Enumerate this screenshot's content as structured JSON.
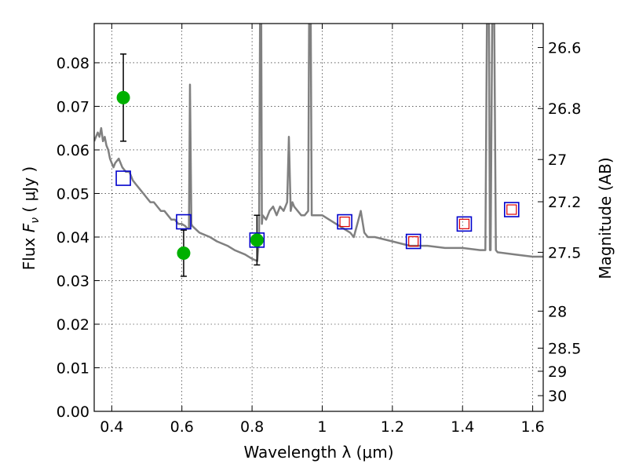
{
  "chart_data": {
    "type": "scatter",
    "title": "",
    "xlabel": "Wavelength  λ (μm)",
    "ylabel_left_prefix": "Flux  ",
    "ylabel_left_var": "F",
    "ylabel_left_sub": "ν",
    "ylabel_left_suffix": "  ( μJy )",
    "ylabel_right": "Magnitude (AB)",
    "xlim": [
      0.35,
      1.63
    ],
    "ylim": [
      0.0,
      0.089
    ],
    "xticks": [
      0.4,
      0.6,
      0.8,
      1.0,
      1.2,
      1.4,
      1.6
    ],
    "xtick_labels": [
      "0.4",
      "0.6",
      "0.8",
      "1",
      "1.2",
      "1.4",
      "1.6"
    ],
    "yticks": [
      0.0,
      0.01,
      0.02,
      0.03,
      0.04,
      0.05,
      0.06,
      0.07,
      0.08
    ],
    "ytick_labels": [
      "0.00",
      "0.01",
      "0.02",
      "0.03",
      "0.04",
      "0.05",
      "0.06",
      "0.07",
      "0.08"
    ],
    "right_ticks": [
      {
        "label": "26.6",
        "flux": 0.0835
      },
      {
        "label": "26.8",
        "flux": 0.0695
      },
      {
        "label": "27",
        "flux": 0.0578
      },
      {
        "label": "27.2",
        "flux": 0.0481
      },
      {
        "label": "27.5",
        "flux": 0.0365
      },
      {
        "label": "28",
        "flux": 0.023
      },
      {
        "label": "28.5",
        "flux": 0.0145
      },
      {
        "label": "29",
        "flux": 0.0092
      },
      {
        "label": "30",
        "flux": 0.0036
      }
    ],
    "grid": true,
    "colors": {
      "model": "#808080",
      "observed": "#00b000",
      "model_box": "#0000cc",
      "model_box_inner": "#dd0000",
      "errorbar": "#000000"
    },
    "series": [
      {
        "kind": "line",
        "x": [
          0.35,
          0.36,
          0.365,
          0.37,
          0.375,
          0.38,
          0.385,
          0.39,
          0.395,
          0.4,
          0.405,
          0.41,
          0.42,
          0.43,
          0.44,
          0.45,
          0.46,
          0.47,
          0.48,
          0.49,
          0.5,
          0.51,
          0.52,
          0.53,
          0.54,
          0.55,
          0.56,
          0.57,
          0.58,
          0.59,
          0.6,
          0.61,
          0.615,
          0.62,
          0.623,
          0.627,
          0.63,
          0.65,
          0.68,
          0.7,
          0.73,
          0.75,
          0.78,
          0.8,
          0.815,
          0.82,
          0.823,
          0.826,
          0.828,
          0.83,
          0.84,
          0.85,
          0.86,
          0.87,
          0.88,
          0.89,
          0.9,
          0.905,
          0.91,
          0.915,
          0.92,
          0.93,
          0.94,
          0.95,
          0.96,
          0.963,
          0.967,
          0.97,
          0.98,
          1.0,
          1.02,
          1.04,
          1.06,
          1.08,
          1.09,
          1.1,
          1.11,
          1.12,
          1.13,
          1.15,
          1.2,
          1.25,
          1.3,
          1.35,
          1.4,
          1.45,
          1.465,
          1.47,
          1.475,
          1.478,
          1.48,
          1.485,
          1.49,
          1.495,
          1.5,
          1.55,
          1.6,
          1.63
        ],
        "y": [
          0.062,
          0.064,
          0.063,
          0.065,
          0.062,
          0.063,
          0.061,
          0.06,
          0.058,
          0.057,
          0.056,
          0.057,
          0.058,
          0.056,
          0.055,
          0.055,
          0.053,
          0.052,
          0.051,
          0.05,
          0.049,
          0.048,
          0.048,
          0.047,
          0.046,
          0.046,
          0.045,
          0.044,
          0.044,
          0.043,
          0.043,
          0.0425,
          0.042,
          0.042,
          0.075,
          0.043,
          0.0425,
          0.041,
          0.04,
          0.039,
          0.038,
          0.037,
          0.036,
          0.035,
          0.0345,
          0.04,
          0.095,
          0.095,
          0.043,
          0.045,
          0.044,
          0.046,
          0.047,
          0.045,
          0.047,
          0.046,
          0.048,
          0.063,
          0.046,
          0.048,
          0.047,
          0.046,
          0.045,
          0.045,
          0.046,
          0.095,
          0.095,
          0.045,
          0.045,
          0.045,
          0.044,
          0.043,
          0.042,
          0.041,
          0.04,
          0.043,
          0.046,
          0.041,
          0.04,
          0.04,
          0.039,
          0.038,
          0.038,
          0.0375,
          0.0375,
          0.037,
          0.037,
          0.095,
          0.095,
          0.037,
          0.037,
          0.095,
          0.095,
          0.037,
          0.0365,
          0.036,
          0.0355,
          0.0355
        ]
      },
      {
        "kind": "points",
        "marker": "circle",
        "x": [
          0.433,
          0.605,
          0.814
        ],
        "y": [
          0.072,
          0.0363,
          0.0393
        ],
        "yerr": [
          0.01,
          0.0053,
          0.0057
        ]
      },
      {
        "kind": "points",
        "marker": "square",
        "x": [
          0.433,
          0.605,
          0.814,
          1.064,
          1.26,
          1.405,
          1.54
        ],
        "y": [
          0.0535,
          0.0435,
          0.0393,
          0.0435,
          0.039,
          0.043,
          0.0463
        ]
      }
    ]
  }
}
